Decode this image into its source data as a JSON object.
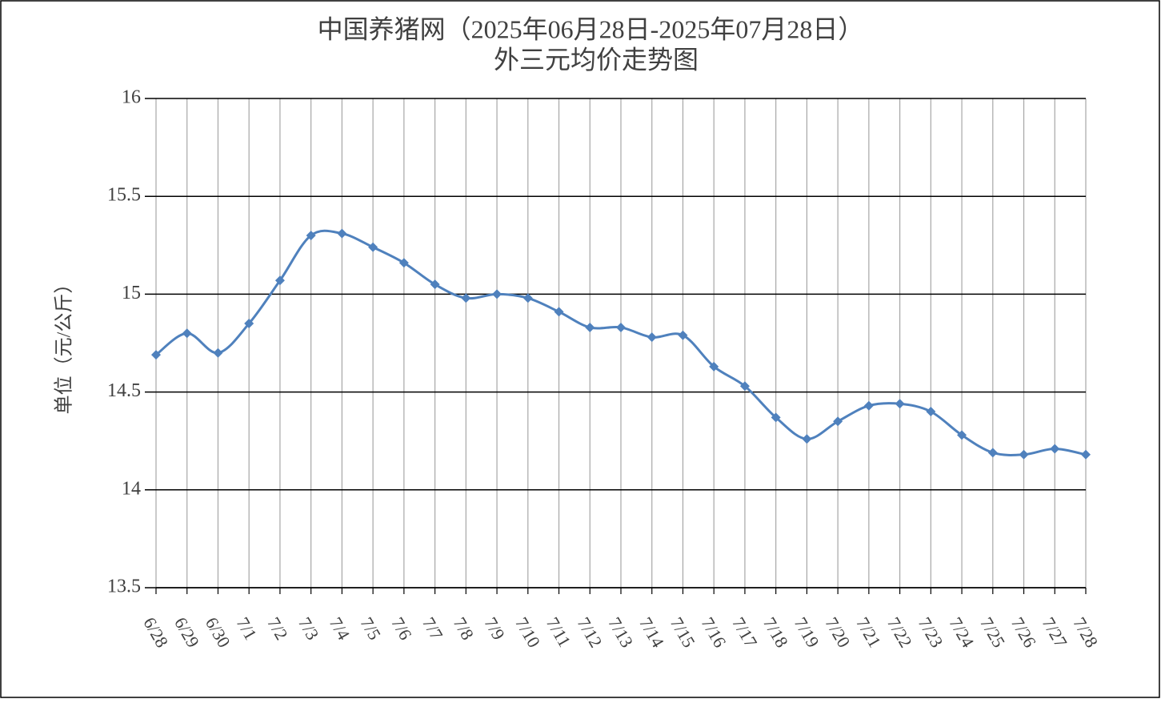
{
  "chart_data": {
    "type": "line",
    "title": "中国养猪网（2025年06月28日-2025年07月28日）",
    "subtitle": "外三元均价走势图",
    "y_label": "单位（元/公斤）",
    "categories": [
      "6/28",
      "6/29",
      "6/30",
      "7/1",
      "7/2",
      "7/3",
      "7/4",
      "7/5",
      "7/6",
      "7/7",
      "7/8",
      "7/9",
      "7/10",
      "7/11",
      "7/12",
      "7/13",
      "7/14",
      "7/15",
      "7/16",
      "7/17",
      "7/18",
      "7/19",
      "7/20",
      "7/21",
      "7/22",
      "7/23",
      "7/24",
      "7/25",
      "7/26",
      "7/27",
      "7/28"
    ],
    "series": [
      {
        "name": "外三元",
        "color": "#4f81bd",
        "values": [
          14.69,
          14.8,
          14.7,
          14.85,
          15.07,
          15.3,
          15.31,
          15.24,
          15.16,
          15.05,
          14.98,
          15.0,
          14.98,
          14.91,
          14.83,
          14.83,
          14.78,
          14.79,
          14.63,
          14.53,
          14.37,
          14.26,
          14.35,
          14.43,
          14.44,
          14.4,
          14.28,
          14.19,
          14.18,
          14.21,
          14.18
        ]
      }
    ],
    "ylim": [
      13.5,
      16
    ],
    "yticks": [
      13.5,
      14,
      14.5,
      15,
      15.5,
      16
    ],
    "grid": true
  }
}
